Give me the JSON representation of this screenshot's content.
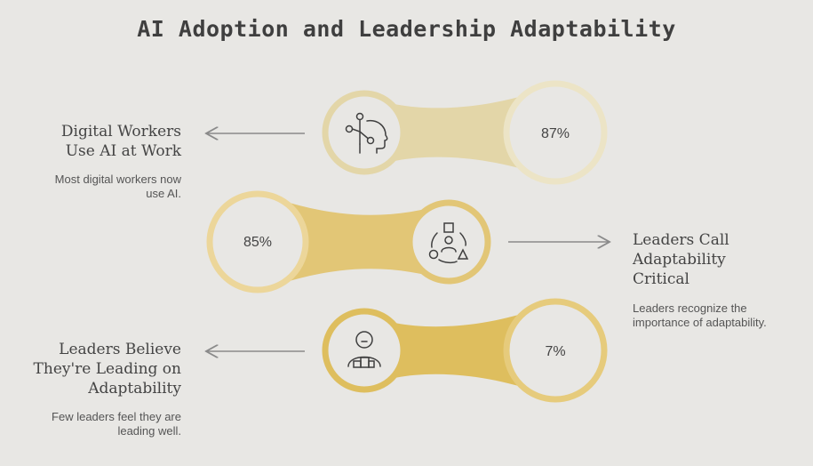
{
  "title": "AI Adoption and Leadership Adaptability",
  "rows": [
    {
      "heading_lines": [
        "Digital Workers",
        "Use AI at Work"
      ],
      "description_lines": [
        "Most digital workers now",
        "use AI."
      ],
      "value": "87%",
      "icon": "head-network-icon",
      "color": "#e3d6a8",
      "stroke": "#ece4c6"
    },
    {
      "heading_lines": [
        "Leaders Call",
        "Adaptability",
        "Critical"
      ],
      "description_lines": [
        "Leaders recognize the",
        "importance of adaptability."
      ],
      "value": "85%",
      "icon": "people-shapes-icon",
      "color": "#e2c676",
      "stroke": "#ecd69a"
    },
    {
      "heading_lines": [
        "Leaders Believe",
        "They're Leading on",
        "Adaptability"
      ],
      "description_lines": [
        "Few leaders feel they are",
        "leading well."
      ],
      "value": "7%",
      "icon": "person-podium-icon",
      "color": "#debe5e",
      "stroke": "#e6cb7c"
    }
  ]
}
